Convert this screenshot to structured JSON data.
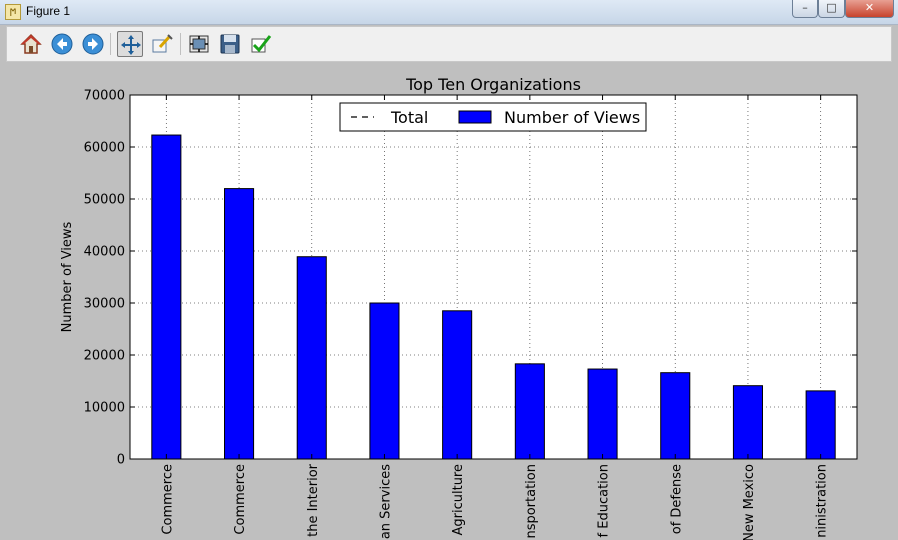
{
  "window": {
    "title": "Figure 1",
    "app_icon": "matplotlib-icon"
  },
  "window_controls": [
    {
      "name": "minimize-button",
      "glyph": "–"
    },
    {
      "name": "maximize-button",
      "glyph": "□"
    },
    {
      "name": "close-button",
      "glyph": "✕"
    }
  ],
  "toolbar": {
    "buttons": [
      {
        "name": "home-button",
        "icon": "home-icon"
      },
      {
        "name": "back-button",
        "icon": "arrow-left-icon"
      },
      {
        "name": "forward-button",
        "icon": "arrow-right-icon"
      },
      {
        "name": "pan-button",
        "icon": "move-icon",
        "active": true
      },
      {
        "name": "zoom-button",
        "icon": "zoom-rect-icon"
      },
      {
        "name": "subplots-button",
        "icon": "subplots-icon"
      },
      {
        "name": "save-button",
        "icon": "floppy-disk-icon"
      },
      {
        "name": "edit-button",
        "icon": "checkmark-icon"
      }
    ]
  },
  "colors": {
    "bar": "#0000ff",
    "background": "#bfbfbf",
    "axes": "#ffffff"
  },
  "chart_data": {
    "type": "bar",
    "title": "Top Ten Organizations",
    "xlabel": "",
    "ylabel": "Number of Views",
    "ylim": [
      0,
      70000
    ],
    "yticks": [
      0,
      10000,
      20000,
      30000,
      40000,
      50000,
      60000,
      70000
    ],
    "grid": true,
    "legend": {
      "placement": "upper-center",
      "entries": [
        "Total",
        "Number of Views"
      ]
    },
    "categories": [
      "Commerce",
      "Commerce",
      "the Interior",
      "an Services",
      "Agriculture",
      "nsportation",
      "f Education",
      "of Defense",
      "New Mexico",
      "ninistration"
    ],
    "series": [
      {
        "name": "Number of Views",
        "values": [
          62300,
          52000,
          38900,
          30000,
          28500,
          18300,
          17300,
          16600,
          14100,
          13100
        ]
      }
    ]
  }
}
